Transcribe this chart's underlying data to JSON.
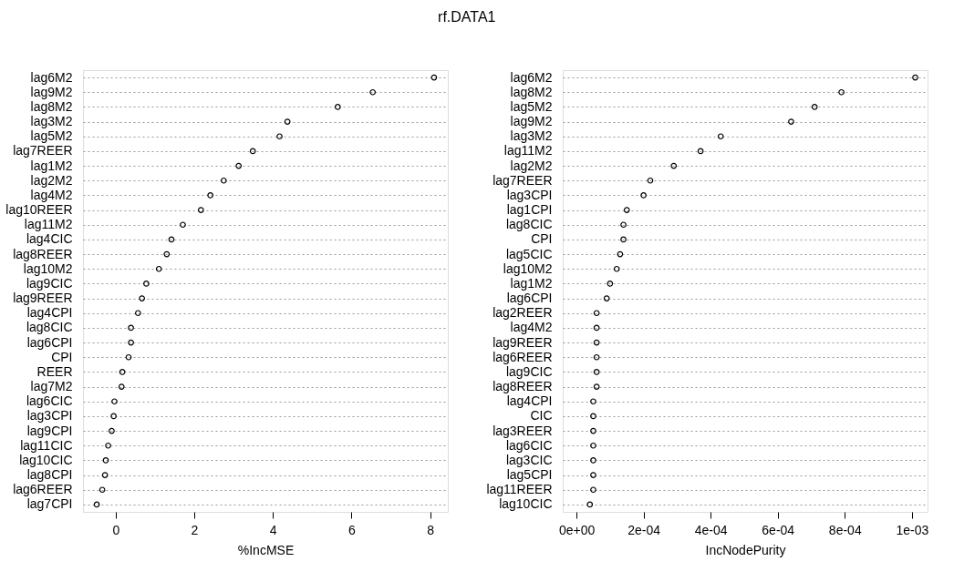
{
  "chart_data": [
    {
      "type": "scatter",
      "title": "rf.DATA1",
      "orientation": "horizontal",
      "xlabel": "%IncMSE",
      "color": "#000000",
      "marker": "circle",
      "grid": "y",
      "categories": [
        "lag6M2",
        "lag9M2",
        "lag8M2",
        "lag3M2",
        "lag5M2",
        "lag7REER",
        "lag1M2",
        "lag2M2",
        "lag4M2",
        "lag10REER",
        "lag11M2",
        "lag4CIC",
        "lag8REER",
        "lag10M2",
        "lag9CIC",
        "lag9REER",
        "lag4CPI",
        "lag8CIC",
        "lag6CPI",
        "CPI",
        "REER",
        "lag7M2",
        "lag6CIC",
        "lag3CPI",
        "lag9CPI",
        "lag11CIC",
        "lag10CIC",
        "lag8CPI",
        "lag6REER",
        "lag7CPI"
      ],
      "values": [
        8.1,
        6.54,
        5.65,
        4.37,
        4.17,
        3.49,
        3.13,
        2.75,
        2.41,
        2.17,
        1.71,
        1.42,
        1.3,
        1.1,
        0.78,
        0.67,
        0.57,
        0.39,
        0.39,
        0.33,
        0.17,
        0.15,
        -0.03,
        -0.05,
        -0.1,
        -0.19,
        -0.25,
        -0.27,
        -0.34,
        -0.48
      ],
      "xlim": [
        -0.83,
        8.45
      ],
      "xticks": [
        0,
        2,
        4,
        6,
        8
      ]
    },
    {
      "type": "scatter",
      "orientation": "horizontal",
      "xlabel": "IncNodePurity",
      "color": "#000000",
      "marker": "circle",
      "grid": "y",
      "categories": [
        "lag6M2",
        "lag8M2",
        "lag5M2",
        "lag9M2",
        "lag3M2",
        "lag11M2",
        "lag2M2",
        "lag7REER",
        "lag3CPI",
        "lag1CPI",
        "lag8CIC",
        "CPI",
        "lag5CIC",
        "lag10M2",
        "lag1M2",
        "lag6CPI",
        "lag2REER",
        "lag4M2",
        "lag9REER",
        "lag6REER",
        "lag9CIC",
        "lag8REER",
        "lag4CPI",
        "CIC",
        "lag3REER",
        "lag6CIC",
        "lag3CIC",
        "lag5CPI",
        "lag11REER",
        "lag10CIC"
      ],
      "values": [
        0.00101,
        0.00079,
        0.00071,
        0.00064,
        0.00043,
        0.00037,
        0.00029,
        0.00022,
        0.0002,
        0.00015,
        0.00014,
        0.00014,
        0.00013,
        0.00012,
        0.0001,
        9e-05,
        6e-05,
        6e-05,
        6e-05,
        6e-05,
        6e-05,
        6e-05,
        5e-05,
        5e-05,
        5e-05,
        5e-05,
        5e-05,
        5e-05,
        5e-05,
        4e-05
      ],
      "xlim": [
        -4.1e-05,
        0.0010467
      ],
      "xticks": [
        {
          "value": 0,
          "label": "0e+00"
        },
        {
          "value": 0.0002,
          "label": "2e-04"
        },
        {
          "value": 0.0004,
          "label": "4e-04"
        },
        {
          "value": 0.0006,
          "label": "6e-04"
        },
        {
          "value": 0.0008,
          "label": "8e-04"
        },
        {
          "value": 0.001,
          "label": "1e-03"
        }
      ]
    }
  ]
}
